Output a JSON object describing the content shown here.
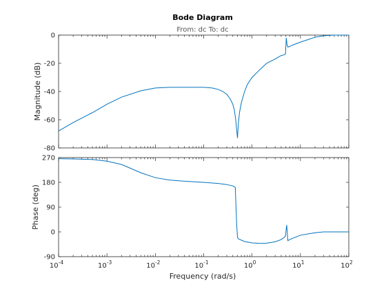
{
  "chart_data": {
    "type": "line",
    "title": "Bode Diagram",
    "subtitle": "From: dc  To: dc",
    "xlabel": "Frequency  (rad/s)",
    "xscale": "log",
    "xlim": [
      0.0001,
      100
    ],
    "x_tick_labels": [
      {
        "base": "10",
        "exp": "-4"
      },
      {
        "base": "10",
        "exp": "-3"
      },
      {
        "base": "10",
        "exp": "-2"
      },
      {
        "base": "10",
        "exp": "-1"
      },
      {
        "base": "10",
        "exp": "0"
      },
      {
        "base": "10",
        "exp": "1"
      },
      {
        "base": "10",
        "exp": "2"
      }
    ],
    "colors": {
      "trace": "#0072bd",
      "axes": "#262626"
    },
    "panels": [
      {
        "ylabel": "Magnitude (dB)",
        "ylim": [
          -80,
          0
        ],
        "yticks": [
          0,
          -20,
          -40,
          -60,
          -80
        ],
        "ytick_labels": [
          "0",
          "-20",
          "-40",
          "-60",
          "-80"
        ],
        "series": [
          {
            "x": [
              0.0001,
              0.0002,
              0.0005,
              0.001,
              0.002,
              0.005,
              0.01,
              0.02,
              0.05,
              0.1,
              0.15,
              0.2,
              0.25,
              0.3,
              0.35,
              0.4,
              0.43,
              0.46,
              0.48,
              0.5,
              0.52,
              0.55,
              0.6,
              0.7,
              0.8,
              1,
              1.5,
              2,
              3,
              4,
              4.6,
              4.9,
              5.1,
              5.3,
              5.5,
              6,
              7,
              10,
              15,
              20,
              30,
              50,
              100
            ],
            "y": [
              -68,
              -62,
              -55,
              -49,
              -44,
              -39.5,
              -37.5,
              -37,
              -37,
              -37,
              -37.5,
              -38.5,
              -40,
              -42,
              -45,
              -49,
              -53,
              -60,
              -67,
              -73,
              -63,
              -55,
              -48,
              -40,
              -35,
              -30,
              -24,
              -20,
              -17,
              -14.5,
              -14,
              -13.5,
              -2,
              -7,
              -8.5,
              -8,
              -7,
              -5,
              -3,
              -1.5,
              -0.5,
              0,
              0
            ]
          }
        ]
      },
      {
        "ylabel": "Phase (deg)",
        "ylim": [
          -90,
          270
        ],
        "yticks": [
          270,
          180,
          90,
          0,
          -90
        ],
        "ytick_labels": [
          "270",
          "180",
          "90",
          "0",
          "-90"
        ],
        "series": [
          {
            "x": [
              0.0001,
              0.0002,
              0.0005,
              0.001,
              0.002,
              0.005,
              0.01,
              0.02,
              0.05,
              0.1,
              0.2,
              0.3,
              0.4,
              0.45,
              0.48,
              0.5,
              0.52,
              0.55,
              0.6,
              0.7,
              1,
              1.5,
              2,
              3,
              4,
              4.6,
              4.9,
              5.2,
              5.5,
              6,
              7,
              10,
              15,
              20,
              30,
              50,
              100
            ],
            "y": [
              266,
              265,
              263,
              257,
              245,
              215,
              197,
              188,
              183,
              180,
              176,
              172,
              167,
              162,
              30,
              -20,
              -25,
              -27,
              -30,
              -35,
              -40,
              -42,
              -41,
              -36,
              -28,
              -20,
              -15,
              25,
              -32,
              -28,
              -23,
              -12,
              -7,
              -3,
              0,
              0,
              0
            ]
          }
        ]
      }
    ]
  }
}
